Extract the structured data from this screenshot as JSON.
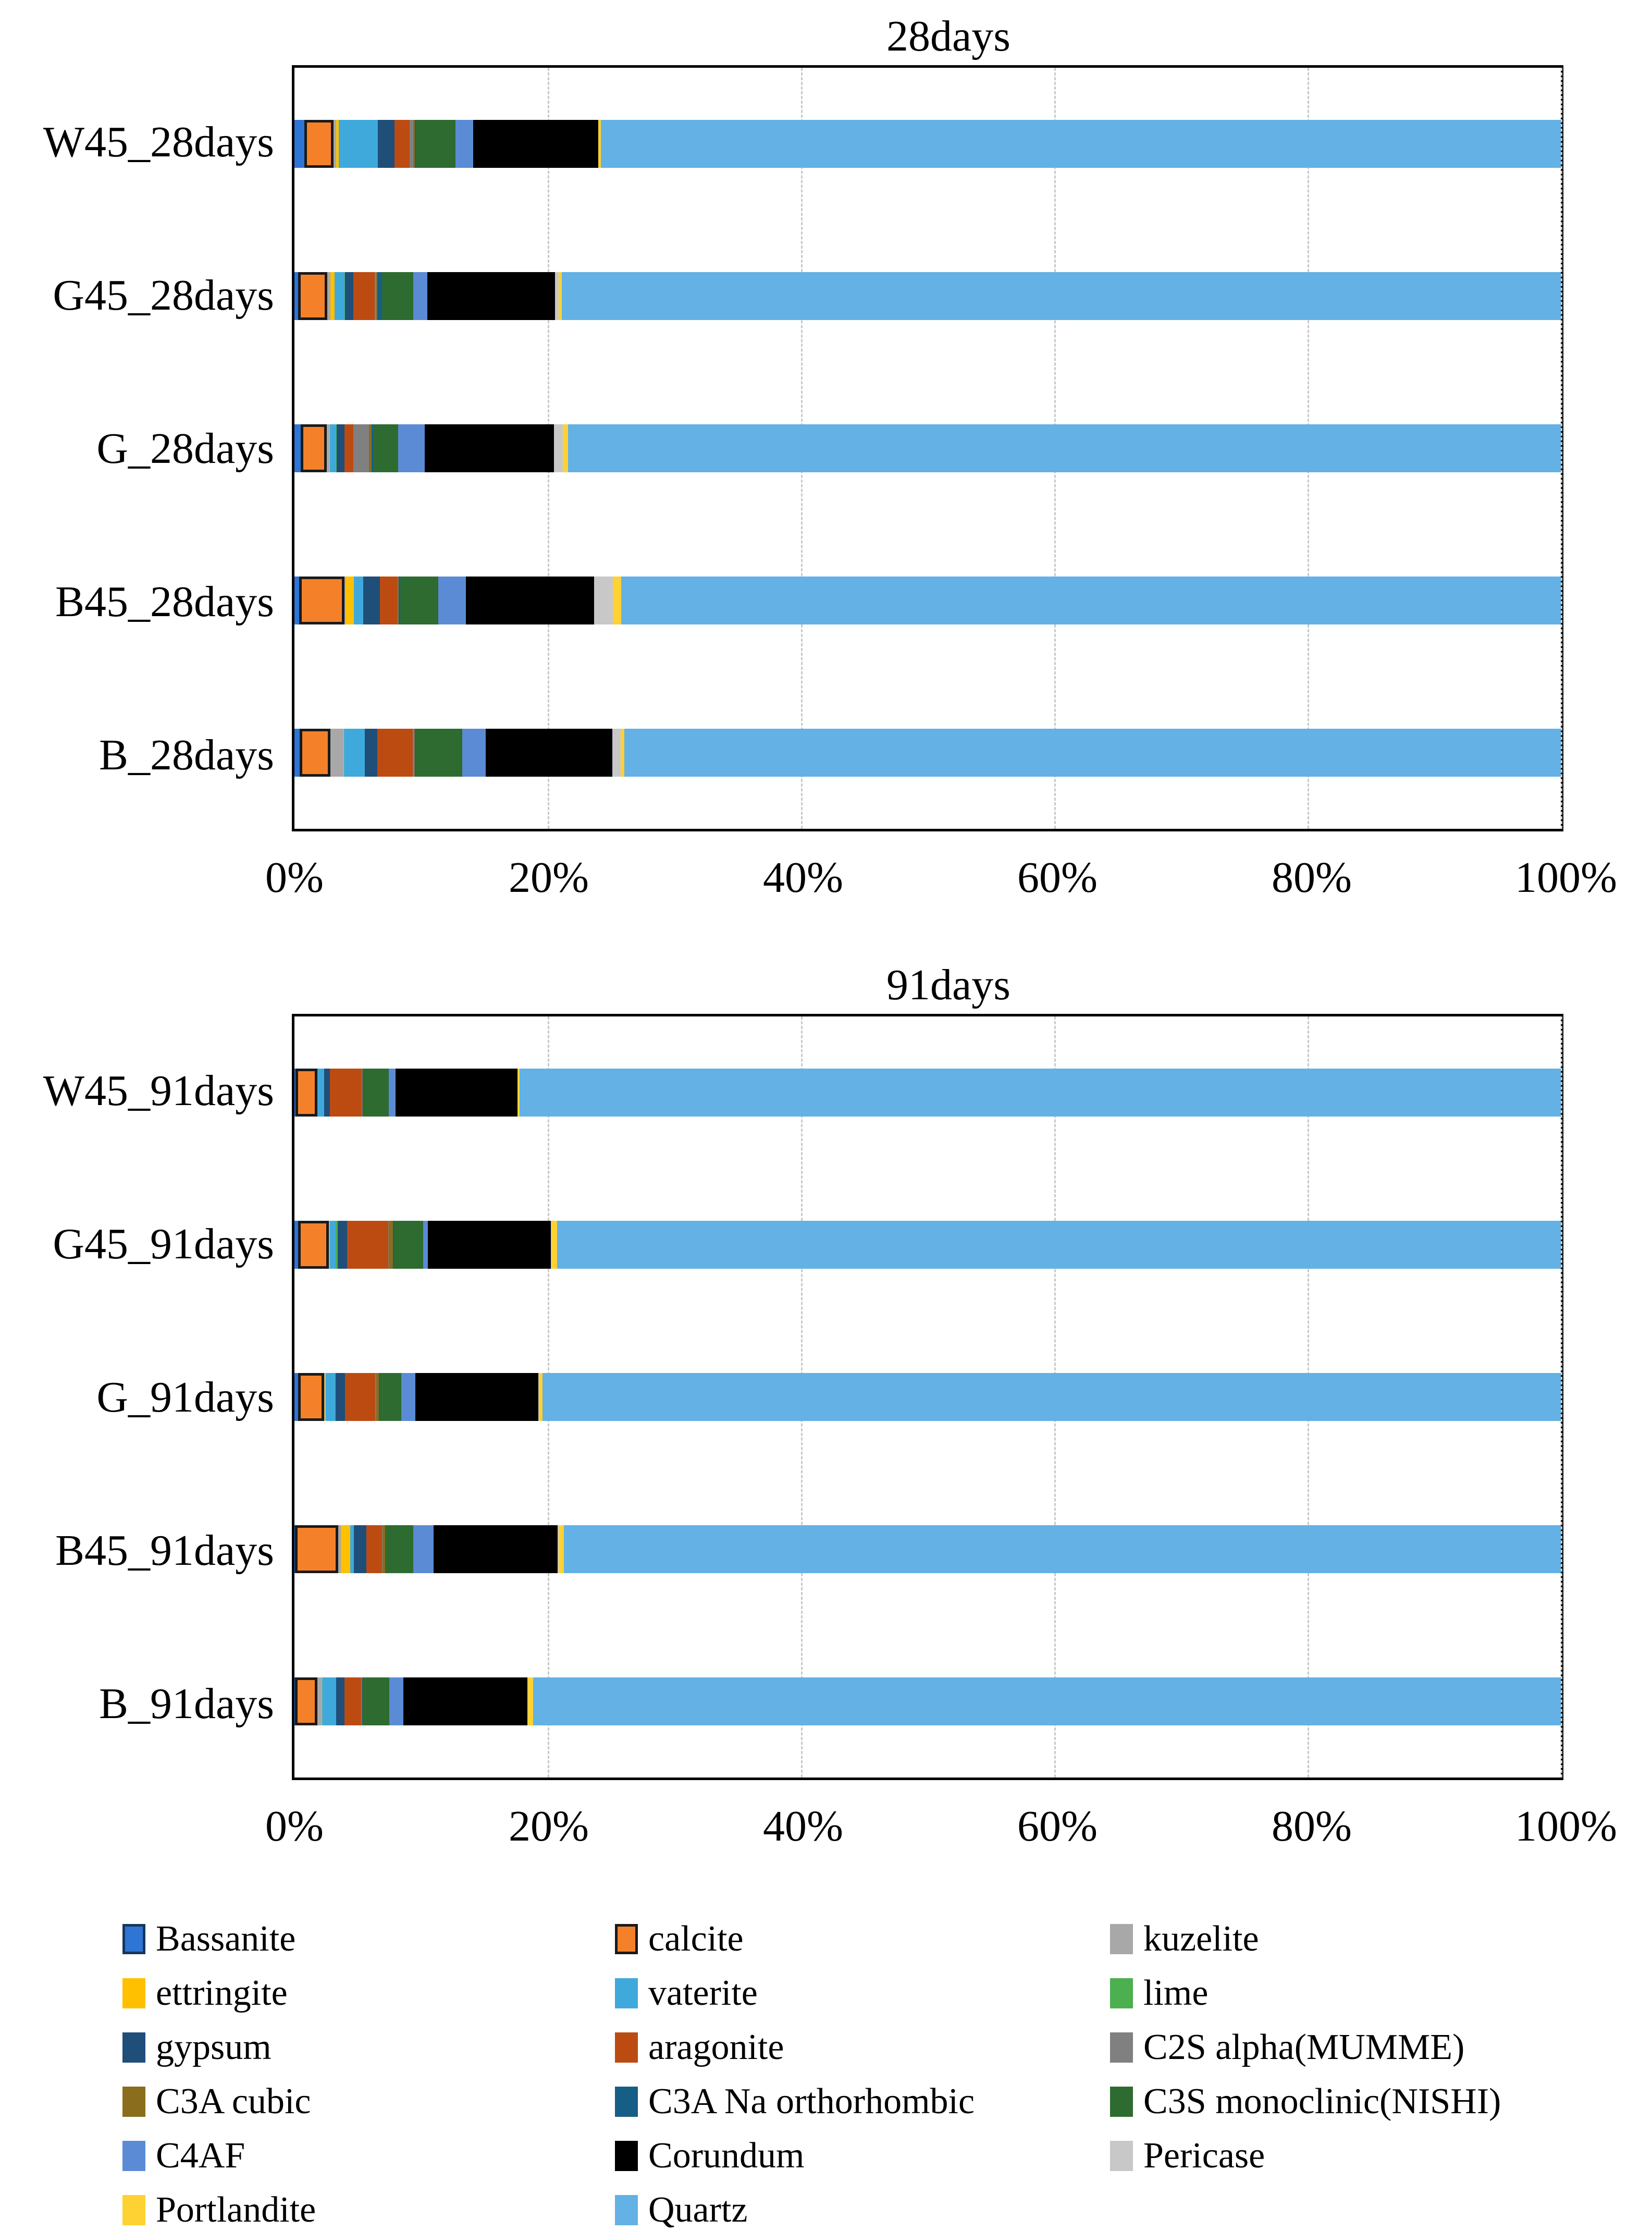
{
  "chart_data": [
    {
      "type": "bar",
      "orientation": "horizontal-stacked",
      "title": "28days",
      "categories": [
        "W45_28days",
        "G45_28days",
        "G_28days",
        "B45_28days",
        "B_28days"
      ],
      "x_ticks": [
        "0%",
        "20%",
        "40%",
        "60%",
        "80%",
        "100%"
      ],
      "xlim": [
        0,
        100
      ],
      "grid": "vertical-dashed",
      "series": [
        {
          "name": "Bassanite",
          "values": [
            0.8,
            0.3,
            0.5,
            0.35,
            0.4
          ]
        },
        {
          "name": "calcite",
          "values": [
            2.3,
            2.3,
            2.05,
            3.6,
            2.45
          ]
        },
        {
          "name": "kuzelite",
          "values": [
            0.2,
            0.25,
            0.2,
            0.1,
            1.0
          ]
        },
        {
          "name": "ettringite",
          "values": [
            0.2,
            0.3,
            0.05,
            0.65,
            0.05
          ]
        },
        {
          "name": "vaterite",
          "values": [
            3.1,
            0.8,
            0.5,
            0.75,
            1.65
          ]
        },
        {
          "name": "lime",
          "values": [
            0,
            0.05,
            0.05,
            0,
            0
          ]
        },
        {
          "name": "gypsum",
          "values": [
            1.3,
            0.65,
            0.6,
            1.3,
            1.0
          ]
        },
        {
          "name": "aragonite",
          "values": [
            1.2,
            1.7,
            0.7,
            1.4,
            2.8
          ]
        },
        {
          "name": "C2S alpha(MUMME)",
          "values": [
            0.3,
            0.1,
            1.25,
            0.05,
            0.1
          ]
        },
        {
          "name": "C3A cubic",
          "values": [
            0.1,
            0.1,
            0.2,
            0.05,
            0.05
          ]
        },
        {
          "name": "C3A Na orthorhombic",
          "values": [
            0.1,
            0.35,
            0.1,
            0.1,
            0.05
          ]
        },
        {
          "name": "C3S monoclinic(NISHI)",
          "values": [
            3.1,
            2.5,
            2.0,
            3.0,
            3.7
          ]
        },
        {
          "name": "C4AF",
          "values": [
            1.4,
            1.1,
            2.1,
            2.2,
            1.85
          ]
        },
        {
          "name": "Corundum",
          "values": [
            9.9,
            10.1,
            10.2,
            10.1,
            10.0
          ]
        },
        {
          "name": "Pericase",
          "values": [
            0,
            0.25,
            0.7,
            1.5,
            0.65
          ]
        },
        {
          "name": "Portlandite",
          "values": [
            0.2,
            0.25,
            0.4,
            0.65,
            0.3
          ]
        },
        {
          "name": "Quartz",
          "values": [
            75.8,
            78.9,
            78.4,
            74.2,
            73.95
          ]
        }
      ]
    },
    {
      "type": "bar",
      "orientation": "horizontal-stacked",
      "title": "91days",
      "categories": [
        "W45_91days",
        "G45_91days",
        "G_91days",
        "B45_91days",
        "B_91days"
      ],
      "x_ticks": [
        "0%",
        "20%",
        "40%",
        "60%",
        "80%",
        "100%"
      ],
      "xlim": [
        0,
        100
      ],
      "grid": "vertical-dashed",
      "series": [
        {
          "name": "Bassanite",
          "values": [
            0.1,
            0.3,
            0.3,
            0.05,
            0.05
          ]
        },
        {
          "name": "calcite",
          "values": [
            1.7,
            2.4,
            2.05,
            3.4,
            1.75
          ]
        },
        {
          "name": "kuzelite",
          "values": [
            0,
            0.05,
            0.05,
            0.2,
            0.35
          ]
        },
        {
          "name": "ettringite",
          "values": [
            0,
            0.05,
            0.05,
            0.75,
            0.05
          ]
        },
        {
          "name": "vaterite",
          "values": [
            0.55,
            0.45,
            0.75,
            0.3,
            1.1
          ]
        },
        {
          "name": "lime",
          "values": [
            0,
            0.15,
            0.05,
            0,
            0
          ]
        },
        {
          "name": "gypsum",
          "values": [
            0.45,
            0.75,
            0.75,
            1.0,
            0.65
          ]
        },
        {
          "name": "aragonite",
          "values": [
            2.5,
            3.25,
            2.4,
            1.2,
            1.3
          ]
        },
        {
          "name": "C2S alpha(MUMME)",
          "values": [
            0.05,
            0.05,
            0.05,
            0.05,
            0.05
          ]
        },
        {
          "name": "C3A cubic",
          "values": [
            0.05,
            0.35,
            0.2,
            0.2,
            0.05
          ]
        },
        {
          "name": "C3A Na orthorhombic",
          "values": [
            0.05,
            0.05,
            0.05,
            0.05,
            0.05
          ]
        },
        {
          "name": "C3S monoclinic(NISHI)",
          "values": [
            2.0,
            2.3,
            1.75,
            2.2,
            2.1
          ]
        },
        {
          "name": "C4AF",
          "values": [
            0.55,
            0.4,
            1.1,
            1.6,
            1.1
          ]
        },
        {
          "name": "Corundum",
          "values": [
            9.6,
            9.7,
            9.7,
            9.8,
            9.8
          ]
        },
        {
          "name": "Pericase",
          "values": [
            0,
            0.05,
            0.05,
            0.05,
            0.05
          ]
        },
        {
          "name": "Portlandite",
          "values": [
            0.2,
            0.45,
            0.3,
            0.45,
            0.4
          ]
        },
        {
          "name": "Quartz",
          "values": [
            82.2,
            79.25,
            80.4,
            78.7,
            81.15
          ]
        }
      ]
    }
  ],
  "legend": {
    "items": [
      {
        "label": "Bassanite",
        "color": "#2E75D6",
        "border": "#17375E"
      },
      {
        "label": "calcite",
        "color": "#F4812A",
        "border": "#1a1a1a"
      },
      {
        "label": "kuzelite",
        "color": "#A8A8A8",
        "border": ""
      },
      {
        "label": "ettringite",
        "color": "#FFC000",
        "border": ""
      },
      {
        "label": "vaterite",
        "color": "#3FA9DC",
        "border": ""
      },
      {
        "label": "lime",
        "color": "#4CAF50",
        "border": ""
      },
      {
        "label": "gypsum",
        "color": "#1F4E79",
        "border": ""
      },
      {
        "label": "aragonite",
        "color": "#BC4B12",
        "border": ""
      },
      {
        "label": "C2S alpha(MUMME)",
        "color": "#808080",
        "border": ""
      },
      {
        "label": "C3A cubic",
        "color": "#8A6D1D",
        "border": ""
      },
      {
        "label": "C3A Na orthorhombic",
        "color": "#175E86",
        "border": ""
      },
      {
        "label": "C3S monoclinic(NISHI)",
        "color": "#2E6B30",
        "border": ""
      },
      {
        "label": "C4AF",
        "color": "#5B8BD5",
        "border": ""
      },
      {
        "label": "Corundum",
        "color": "#000000",
        "border": ""
      },
      {
        "label": "Pericase",
        "color": "#C8C8C8",
        "border": ""
      },
      {
        "label": "Portlandite",
        "color": "#FFD233",
        "border": ""
      },
      {
        "label": "Quartz",
        "color": "#63B1E5",
        "border": ""
      }
    ]
  }
}
